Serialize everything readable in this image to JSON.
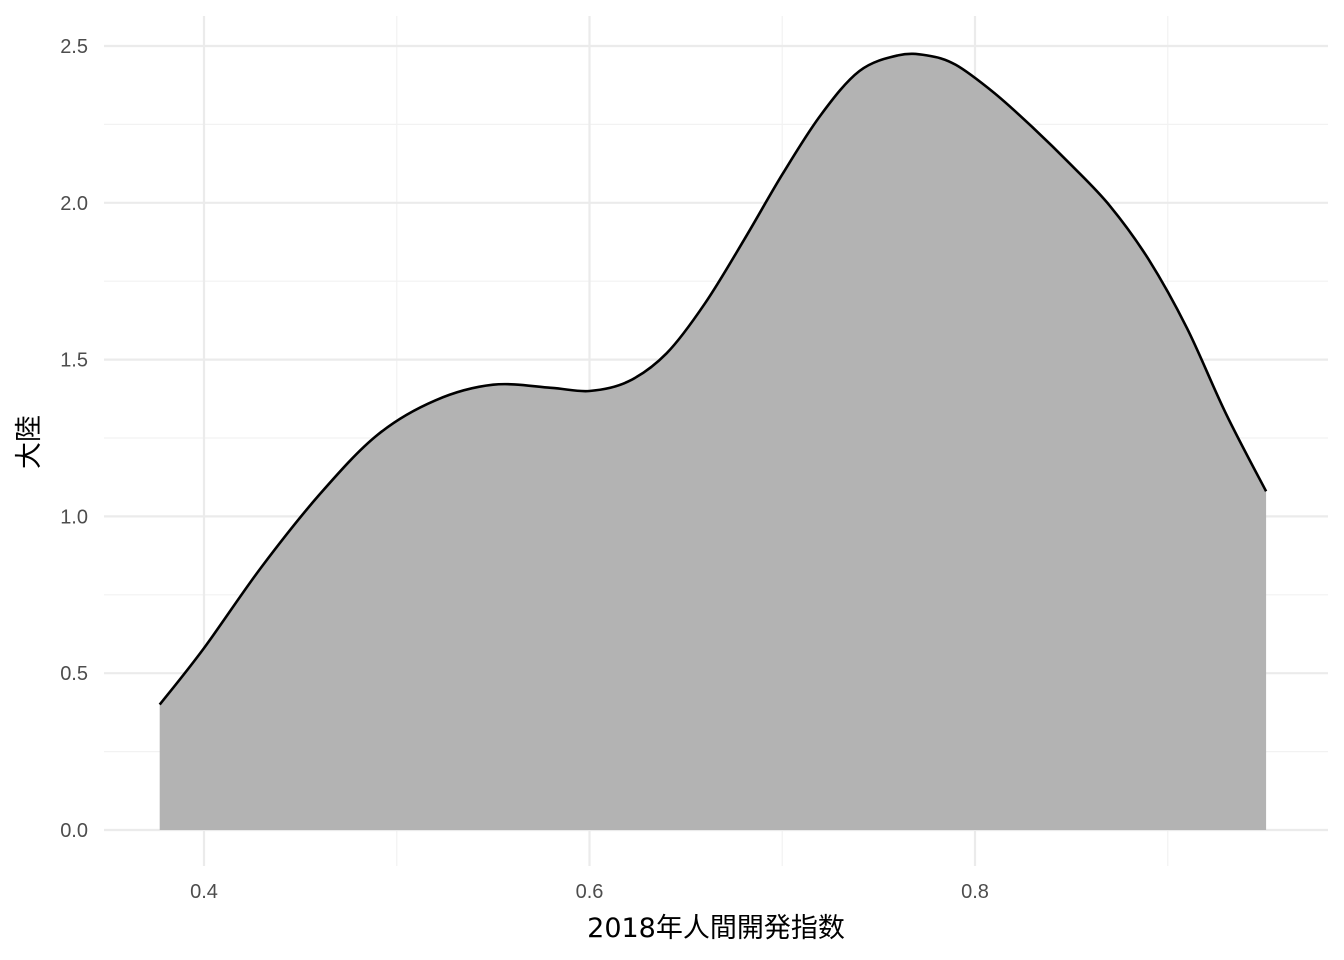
{
  "chart_data": {
    "type": "area",
    "title": "",
    "xlabel": "2018年人間開発指数",
    "ylabel": "大陸",
    "xlim": [
      0.35,
      0.96
    ],
    "ylim": [
      -0.05,
      2.6
    ],
    "x_ticks": [
      0.4,
      0.6,
      0.8
    ],
    "x_tick_labels": [
      "0.4",
      "0.6",
      "0.8"
    ],
    "x_minor_ticks": [
      0.5,
      0.7,
      0.9
    ],
    "y_ticks": [
      0.0,
      0.5,
      1.0,
      1.5,
      2.0,
      2.5
    ],
    "y_tick_labels": [
      "0.0",
      "0.5",
      "1.0",
      "1.5",
      "2.0",
      "2.5"
    ],
    "y_minor_ticks": [
      0.25,
      0.75,
      1.25,
      1.75,
      2.25
    ],
    "grid": true,
    "fill_color": "#b3b3b3",
    "line_color": "#000000",
    "series": [
      {
        "x": [
          0.377,
          0.4,
          0.43,
          0.46,
          0.49,
          0.52,
          0.55,
          0.58,
          0.6,
          0.62,
          0.64,
          0.66,
          0.68,
          0.7,
          0.72,
          0.74,
          0.76,
          0.775,
          0.79,
          0.81,
          0.83,
          0.85,
          0.87,
          0.89,
          0.91,
          0.93,
          0.951
        ],
        "y": [
          0.4,
          0.58,
          0.84,
          1.07,
          1.26,
          1.37,
          1.42,
          1.41,
          1.4,
          1.43,
          1.52,
          1.68,
          1.88,
          2.09,
          2.28,
          2.42,
          2.47,
          2.47,
          2.44,
          2.35,
          2.24,
          2.12,
          1.99,
          1.82,
          1.6,
          1.33,
          1.08
        ]
      }
    ]
  }
}
